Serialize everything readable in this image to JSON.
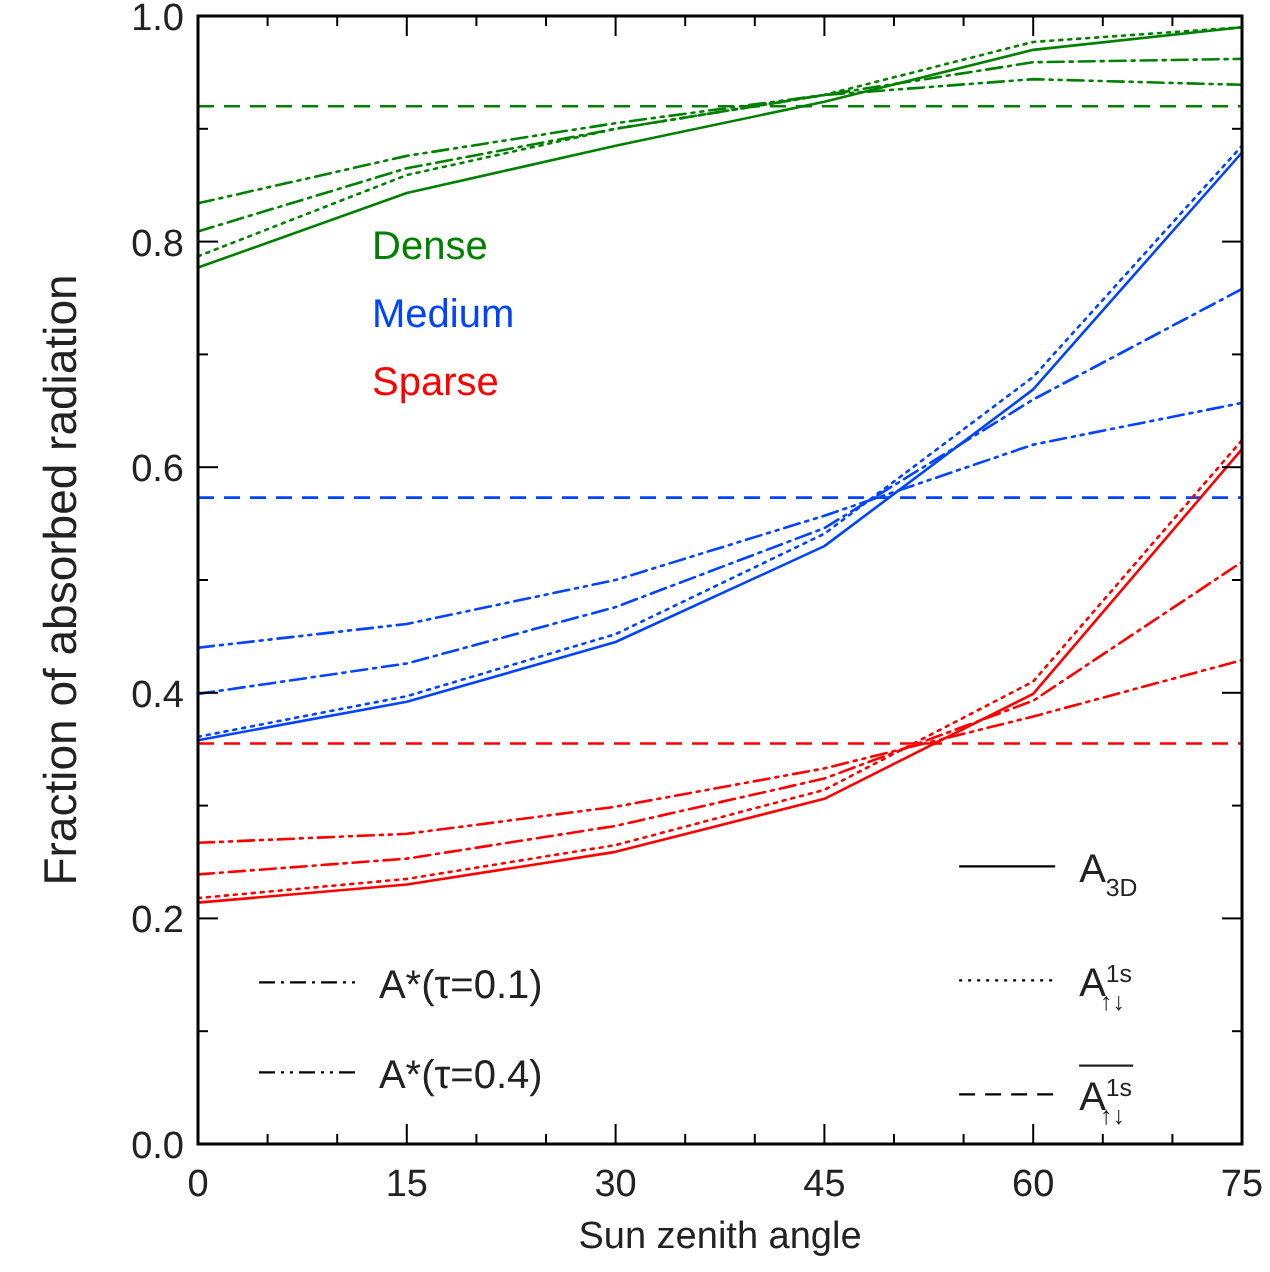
{
  "chart_data": {
    "type": "line",
    "xlabel": "Sun zenith angle",
    "ylabel": "Fraction of absorbed radiation",
    "x": [
      0,
      15,
      30,
      45,
      60,
      75
    ],
    "xlim": [
      0,
      75
    ],
    "xticks": [
      0,
      {
        "value": 5,
        "label": null
      },
      {
        "value": 10,
        "label": null
      },
      15,
      {
        "value": 20,
        "label": null
      },
      {
        "value": 25,
        "label": null
      },
      30,
      {
        "value": 35,
        "label": null
      },
      {
        "value": 40,
        "label": null
      },
      45,
      {
        "value": 50,
        "label": null
      },
      {
        "value": 55,
        "label": null
      },
      60,
      {
        "value": 65,
        "label": null
      },
      {
        "value": 70,
        "label": null
      },
      75
    ],
    "ylim": [
      0,
      1
    ],
    "yticks": [
      {
        "value": 0,
        "label": "0.0"
      },
      {
        "value": 0.1,
        "label": null
      },
      0.2,
      {
        "value": 0.3,
        "label": null
      },
      0.4,
      {
        "value": 0.5,
        "label": null
      },
      0.6,
      {
        "value": 0.7,
        "label": null
      },
      0.8,
      {
        "value": 0.9,
        "label": null
      },
      {
        "value": 1,
        "label": "1.0"
      }
    ],
    "grid": false,
    "marker": "none",
    "series": [
      {
        "color": "#008000",
        "line_style": "solid",
        "values": [
          0.777,
          0.843,
          0.885,
          0.924,
          0.97,
          0.99
        ]
      },
      {
        "color": "#008000",
        "line_style": "dotted",
        "values": [
          0.787,
          0.859,
          0.9,
          0.93,
          0.977,
          0.99
        ]
      },
      {
        "color": "#008000",
        "line_style": "dashdot",
        "values": [
          0.809,
          0.865,
          0.9,
          0.93,
          0.959,
          0.962
        ]
      },
      {
        "color": "#008000",
        "line_style": "dashdotdot",
        "values": [
          0.834,
          0.876,
          0.905,
          0.93,
          0.944,
          0.939
        ]
      },
      {
        "color": "#0044ff",
        "line_style": "solid",
        "values": [
          0.358,
          0.392,
          0.445,
          0.53,
          0.669,
          0.879
        ]
      },
      {
        "color": "#0044ff",
        "line_style": "dotted",
        "values": [
          0.361,
          0.397,
          0.452,
          0.541,
          0.68,
          0.885
        ]
      },
      {
        "color": "#0044ff",
        "line_style": "dashdot",
        "values": [
          0.399,
          0.426,
          0.476,
          0.546,
          0.66,
          0.758
        ]
      },
      {
        "color": "#0044ff",
        "line_style": "dashdotdot",
        "values": [
          0.44,
          0.461,
          0.5,
          0.557,
          0.62,
          0.657
        ]
      },
      {
        "color": "#ff0000",
        "line_style": "solid",
        "values": [
          0.214,
          0.23,
          0.259,
          0.306,
          0.399,
          0.616
        ]
      },
      {
        "color": "#ff0000",
        "line_style": "dotted",
        "values": [
          0.218,
          0.235,
          0.265,
          0.314,
          0.41,
          0.624
        ]
      },
      {
        "color": "#ff0000",
        "line_style": "dashdot",
        "values": [
          0.239,
          0.253,
          0.282,
          0.324,
          0.393,
          0.516
        ]
      },
      {
        "color": "#ff0000",
        "line_style": "dashdotdot",
        "values": [
          0.267,
          0.275,
          0.299,
          0.333,
          0.379,
          0.429
        ]
      }
    ],
    "ref_lines": [
      {
        "axis": "y",
        "value": 0.92,
        "color": "#008000",
        "line_style": "dashed"
      },
      {
        "axis": "y",
        "value": 0.573,
        "color": "#0044ff",
        "line_style": "dashed"
      },
      {
        "axis": "y",
        "value": 0.355,
        "color": "#ff0000",
        "line_style": "dashed"
      }
    ],
    "annotations": [
      "Dense",
      "Medium",
      "Sparse",
      "A$_{3D}$",
      "A$^{1s}$$_{↑↓}$",
      "A$^{1s}$$_{↑↓}$",
      "A*(τ=0.1)",
      "A*(τ=0.4)"
    ]
  }
}
